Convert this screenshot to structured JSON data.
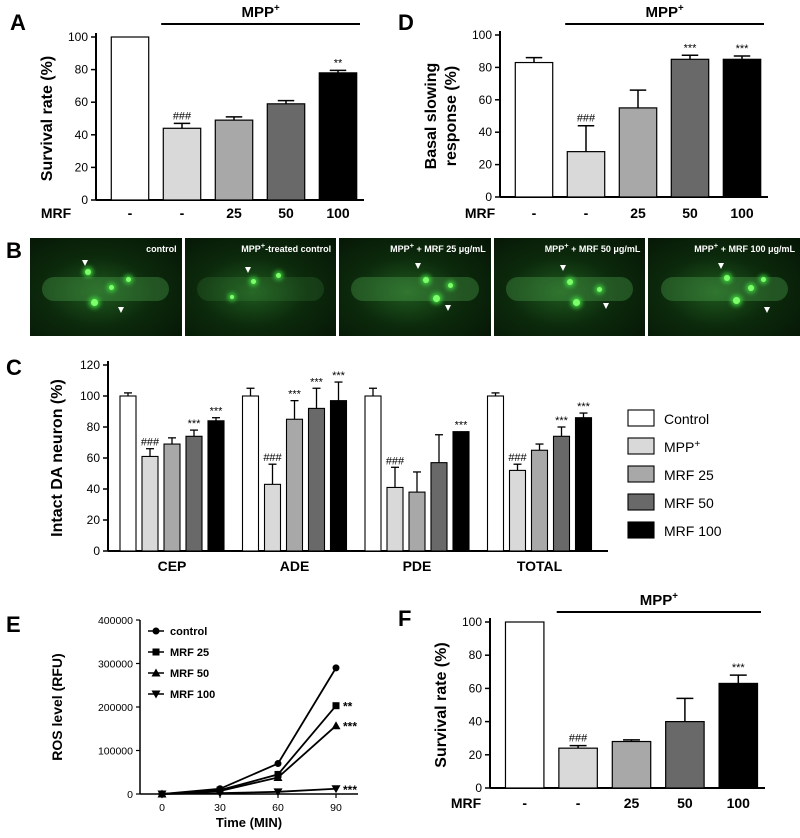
{
  "figure": {
    "panel_letters": {
      "A": "A",
      "B": "B",
      "C": "C",
      "D": "D",
      "E": "E",
      "F": "F"
    },
    "mpp_label": "MPP",
    "mpp_sup": "+",
    "mrf_label": "MRF"
  },
  "panel_b": {
    "images": [
      {
        "caption_pre": "control",
        "caption_sup": "",
        "caption_post": ""
      },
      {
        "caption_pre": "MPP",
        "caption_sup": "+",
        "caption_post": "-treated control"
      },
      {
        "caption_pre": "MPP",
        "caption_sup": "+",
        "caption_post": " + MRF 25 μg/mL"
      },
      {
        "caption_pre": "MPP",
        "caption_sup": "+",
        "caption_post": " + MRF 50 μg/mL"
      },
      {
        "caption_pre": "MPP",
        "caption_sup": "+",
        "caption_post": " + MRF 100 μg/mL"
      }
    ]
  },
  "chart_data": [
    {
      "panel": "A",
      "type": "bar",
      "ylabel": "Survival rate (%)",
      "ylim": [
        0,
        100
      ],
      "yticks": [
        "0",
        "20",
        "40",
        "60",
        "80",
        "100"
      ],
      "categories": [
        "-",
        "-",
        "25",
        "50",
        "100"
      ],
      "values": [
        100,
        44,
        49,
        59,
        78
      ],
      "errors": [
        0,
        3,
        2,
        2,
        1.5
      ],
      "annotations": [
        "",
        "###",
        "",
        "",
        "**"
      ],
      "colors": [
        "#ffffff",
        "#d9d9d9",
        "#a8a8a8",
        "#696969",
        "#000000"
      ],
      "bracket_label": "MPP+"
    },
    {
      "panel": "D",
      "type": "bar",
      "ylabel": "Basal slowing response (%)",
      "ylabel_lines": [
        "Basal slowing",
        "response (%)"
      ],
      "ylim": [
        0,
        100
      ],
      "yticks": [
        "0",
        "20",
        "40",
        "60",
        "80",
        "100"
      ],
      "categories": [
        "-",
        "-",
        "25",
        "50",
        "100"
      ],
      "values": [
        83,
        28,
        55,
        85,
        85
      ],
      "errors": [
        3,
        16,
        11,
        2.5,
        2
      ],
      "annotations": [
        "",
        "###",
        "",
        "***",
        "***"
      ],
      "colors": [
        "#ffffff",
        "#d9d9d9",
        "#a8a8a8",
        "#696969",
        "#000000"
      ],
      "bracket_label": "MPP+"
    },
    {
      "panel": "C",
      "type": "bar",
      "ylabel": "Intact DA neuron (%)",
      "ylim": [
        0,
        120
      ],
      "yticks": [
        "0",
        "20",
        "40",
        "60",
        "80",
        "100",
        "120"
      ],
      "categories": [
        "CEP",
        "ADE",
        "PDE",
        "TOTAL"
      ],
      "series": [
        {
          "name": "Control",
          "color": "#ffffff",
          "values": [
            100,
            100,
            100,
            100
          ],
          "errors": [
            2,
            5,
            5,
            2
          ],
          "annotations": [
            "",
            "",
            "",
            ""
          ]
        },
        {
          "name": "MPP+",
          "color": "#d9d9d9",
          "values": [
            61,
            43,
            41,
            52
          ],
          "errors": [
            5,
            13,
            13,
            4
          ],
          "annotations": [
            "###",
            "###",
            "###",
            "###"
          ]
        },
        {
          "name": "MRF 25",
          "color": "#a8a8a8",
          "values": [
            69,
            85,
            38,
            65
          ],
          "errors": [
            4,
            12,
            13,
            4
          ],
          "annotations": [
            "",
            "***",
            "",
            ""
          ]
        },
        {
          "name": "MRF 50",
          "color": "#696969",
          "values": [
            74,
            92,
            57,
            74
          ],
          "errors": [
            4,
            13,
            18,
            6
          ],
          "annotations": [
            "***",
            "***",
            "",
            "***"
          ]
        },
        {
          "name": "MRF 100",
          "color": "#000000",
          "values": [
            84,
            97,
            77,
            86
          ],
          "errors": [
            2,
            12,
            0,
            3
          ],
          "annotations": [
            "***",
            "***",
            "***",
            "***"
          ]
        }
      ],
      "legend": [
        "Control",
        "MPP+",
        "MRF 25",
        "MRF 50",
        "MRF 100"
      ],
      "legend_placement": "right"
    },
    {
      "panel": "E",
      "type": "line",
      "xlabel": "Time (MIN)",
      "ylabel": "ROS level (RFU)",
      "x": [
        0,
        30,
        60,
        90
      ],
      "xticks": [
        "0",
        "30",
        "60",
        "90"
      ],
      "ylim": [
        0,
        400000
      ],
      "yticks": [
        "0",
        "100000",
        "200000",
        "300000",
        "400000"
      ],
      "series": [
        {
          "name": "control",
          "marker": "circle",
          "values": [
            0,
            12000,
            70000,
            290000
          ],
          "annotation": ""
        },
        {
          "name": "MRF 25",
          "marker": "square",
          "values": [
            0,
            9000,
            45000,
            203000
          ],
          "annotation": "**"
        },
        {
          "name": "MRF 50",
          "marker": "triangle-up",
          "values": [
            0,
            7000,
            38000,
            157000
          ],
          "annotation": "***"
        },
        {
          "name": "MRF 100",
          "marker": "triangle-down",
          "values": [
            0,
            2000,
            5000,
            12000
          ],
          "annotation": "***"
        }
      ],
      "legend_placement": "top-left"
    },
    {
      "panel": "F",
      "type": "bar",
      "ylabel": "Survival rate (%)",
      "ylim": [
        0,
        100
      ],
      "yticks": [
        "0",
        "20",
        "40",
        "60",
        "80",
        "100"
      ],
      "categories": [
        "-",
        "-",
        "25",
        "50",
        "100"
      ],
      "values": [
        100,
        24,
        28,
        40,
        63
      ],
      "errors": [
        0,
        1.5,
        1,
        14,
        5
      ],
      "annotations": [
        "",
        "###",
        "",
        "",
        "***"
      ],
      "colors": [
        "#ffffff",
        "#d9d9d9",
        "#a8a8a8",
        "#696969",
        "#000000"
      ],
      "bracket_label": "MPP+"
    }
  ]
}
